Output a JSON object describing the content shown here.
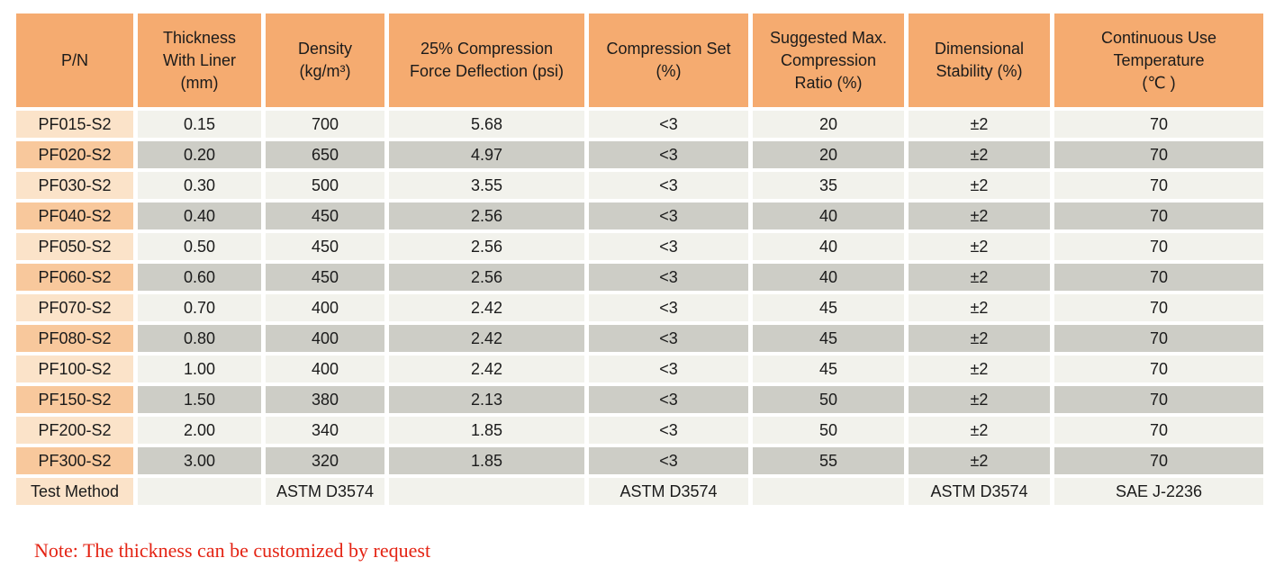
{
  "table": {
    "columns": [
      {
        "label": "P/N"
      },
      {
        "label": "Thickness\nWith Liner\n(mm)"
      },
      {
        "label": "Density\n(kg/m³)"
      },
      {
        "label": "25% Compression\nForce Deflection (psi)"
      },
      {
        "label": "Compression Set\n(%)"
      },
      {
        "label": "Suggested Max.\nCompression\nRatio (%)"
      },
      {
        "label": "Dimensional\nStability (%)"
      },
      {
        "label": "Continuous Use\nTemperature\n(℃ )"
      }
    ],
    "rows": [
      {
        "cells": [
          "PF015-S2",
          "0.15",
          "700",
          "5.68",
          "<3",
          "20",
          "±2",
          "70"
        ]
      },
      {
        "cells": [
          "PF020-S2",
          "0.20",
          "650",
          "4.97",
          "<3",
          "20",
          "±2",
          "70"
        ]
      },
      {
        "cells": [
          "PF030-S2",
          "0.30",
          "500",
          "3.55",
          "<3",
          "35",
          "±2",
          "70"
        ]
      },
      {
        "cells": [
          "PF040-S2",
          "0.40",
          "450",
          "2.56",
          "<3",
          "40",
          "±2",
          "70"
        ]
      },
      {
        "cells": [
          "PF050-S2",
          "0.50",
          "450",
          "2.56",
          "<3",
          "40",
          "±2",
          "70"
        ]
      },
      {
        "cells": [
          "PF060-S2",
          "0.60",
          "450",
          "2.56",
          "<3",
          "40",
          "±2",
          "70"
        ]
      },
      {
        "cells": [
          "PF070-S2",
          "0.70",
          "400",
          "2.42",
          "<3",
          "45",
          "±2",
          "70"
        ]
      },
      {
        "cells": [
          "PF080-S2",
          "0.80",
          "400",
          "2.42",
          "<3",
          "45",
          "±2",
          "70"
        ]
      },
      {
        "cells": [
          "PF100-S2",
          "1.00",
          "400",
          "2.42",
          "<3",
          "45",
          "±2",
          "70"
        ]
      },
      {
        "cells": [
          "PF150-S2",
          "1.50",
          "380",
          "2.13",
          "<3",
          "50",
          "±2",
          "70"
        ]
      },
      {
        "cells": [
          "PF200-S2",
          "2.00",
          "340",
          "1.85",
          "<3",
          "50",
          "±2",
          "70"
        ]
      },
      {
        "cells": [
          "PF300-S2",
          "3.00",
          "320",
          "1.85",
          "<3",
          "55",
          "±2",
          "70"
        ]
      },
      {
        "cells": [
          "Test Method",
          "",
          "ASTM D3574",
          "",
          "ASTM D3574",
          "",
          "ASTM D3574",
          "SAE J-2236"
        ]
      }
    ]
  },
  "note": "Note: The thickness can be customized by request",
  "colors": {
    "header_bg": "#F5AB70",
    "row_light_bg": "#F2F2EC",
    "row_dark_bg": "#CDCDC6",
    "pn_light_bg": "#FBE3C9",
    "pn_dark_bg": "#F8C89C",
    "note_red": "#E42313",
    "text": "#1b1b1b"
  }
}
